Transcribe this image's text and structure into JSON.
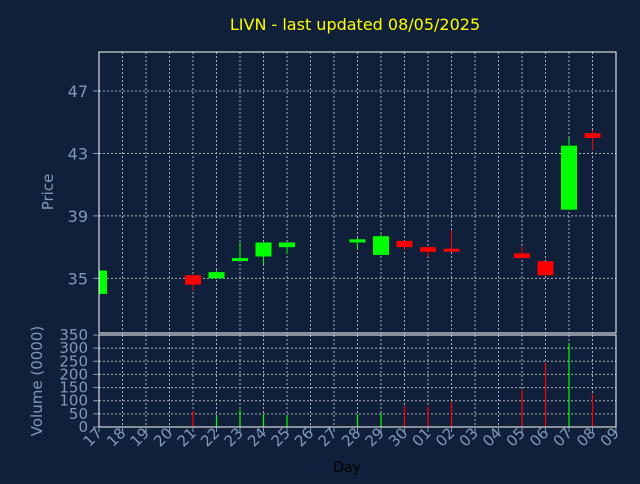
{
  "chart_data": [
    {
      "type": "candlestick",
      "title": "LIVN - last updated 08/05/2025",
      "ylabel": "Price",
      "xlabel": "",
      "ylim": [
        31.5,
        49.5
      ],
      "yticks": [
        35,
        39,
        43,
        47
      ],
      "x_ticks": [
        "17",
        "18",
        "19",
        "20",
        "21",
        "22",
        "23",
        "24",
        "25",
        "26",
        "27",
        "28",
        "29",
        "30",
        "01",
        "02",
        "03",
        "04",
        "05",
        "06",
        "07",
        "08",
        "09"
      ],
      "grid": true,
      "colors": {
        "up": "#00ff00",
        "down": "#ff0000",
        "wick_up": "#00ff00",
        "wick_down": "#ff0000"
      },
      "candles": [
        {
          "x": "17",
          "open": 34.0,
          "high": 35.5,
          "low": 34.0,
          "close": 35.5
        },
        {
          "x": "21",
          "open": 35.2,
          "high": 35.2,
          "low": 34.2,
          "close": 34.6
        },
        {
          "x": "22",
          "open": 35.0,
          "high": 35.5,
          "low": 35.0,
          "close": 35.4
        },
        {
          "x": "23",
          "open": 36.2,
          "high": 37.3,
          "low": 36.1,
          "close": 36.3
        },
        {
          "x": "24",
          "open": 36.4,
          "high": 37.3,
          "low": 35.9,
          "close": 37.3
        },
        {
          "x": "25",
          "open": 37.0,
          "high": 37.3,
          "low": 36.6,
          "close": 37.3
        },
        {
          "x": "28",
          "open": 37.3,
          "high": 37.6,
          "low": 36.9,
          "close": 37.5
        },
        {
          "x": "29",
          "open": 36.5,
          "high": 37.8,
          "low": 36.5,
          "close": 37.7
        },
        {
          "x": "30",
          "open": 37.4,
          "high": 37.4,
          "low": 36.8,
          "close": 37.0
        },
        {
          "x": "01",
          "open": 37.0,
          "high": 37.0,
          "low": 36.4,
          "close": 36.7
        },
        {
          "x": "02",
          "open": 36.9,
          "high": 38.1,
          "low": 36.7,
          "close": 36.8
        },
        {
          "x": "05",
          "open": 36.6,
          "high": 37.0,
          "low": 36.3,
          "close": 36.3
        },
        {
          "x": "06",
          "open": 36.1,
          "high": 36.1,
          "low": 35.2,
          "close": 35.2
        },
        {
          "x": "07",
          "open": 39.4,
          "high": 44.0,
          "low": 39.4,
          "close": 43.5
        },
        {
          "x": "08",
          "open": 44.3,
          "high": 44.5,
          "low": 43.2,
          "close": 44.0
        }
      ]
    },
    {
      "type": "bar",
      "ylabel": "Volume (0000)",
      "xlabel": "Day",
      "ylim": [
        0,
        350
      ],
      "yticks": [
        0,
        50,
        100,
        150,
        200,
        250,
        300,
        350
      ],
      "x_ticks": [
        "17",
        "18",
        "19",
        "20",
        "21",
        "22",
        "23",
        "24",
        "25",
        "26",
        "27",
        "28",
        "29",
        "30",
        "01",
        "02",
        "03",
        "04",
        "05",
        "06",
        "07",
        "08",
        "09"
      ],
      "bars": [
        {
          "x": "21",
          "value": 62,
          "direction": "down"
        },
        {
          "x": "22",
          "value": 40,
          "direction": "up"
        },
        {
          "x": "23",
          "value": 65,
          "direction": "up"
        },
        {
          "x": "24",
          "value": 48,
          "direction": "up"
        },
        {
          "x": "25",
          "value": 45,
          "direction": "up"
        },
        {
          "x": "28",
          "value": 48,
          "direction": "up"
        },
        {
          "x": "29",
          "value": 52,
          "direction": "up"
        },
        {
          "x": "30",
          "value": 80,
          "direction": "down"
        },
        {
          "x": "01",
          "value": 78,
          "direction": "down"
        },
        {
          "x": "02",
          "value": 95,
          "direction": "down"
        },
        {
          "x": "05",
          "value": 140,
          "direction": "down"
        },
        {
          "x": "06",
          "value": 245,
          "direction": "down"
        },
        {
          "x": "07",
          "value": 320,
          "direction": "up"
        },
        {
          "x": "08",
          "value": 125,
          "direction": "down"
        }
      ]
    }
  ],
  "style": {
    "background": "#11203a",
    "plot_border": "#ffffff",
    "grid": "#aab0b8",
    "title_color": "#ffff00",
    "axis_label_color": "#7f9ab8",
    "tick_color": "#7f9ab8",
    "xlabel_color": "#000000"
  }
}
